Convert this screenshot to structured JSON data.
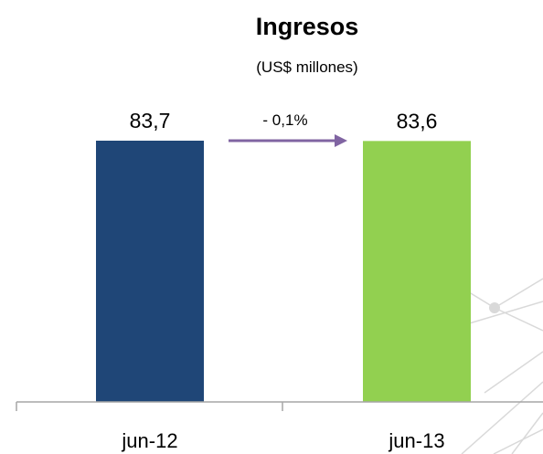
{
  "chart_data": {
    "type": "bar",
    "title": "Ingresos",
    "subtitle": "(US$ millones)",
    "categories": [
      "jun-12",
      "jun-13"
    ],
    "values": [
      83.7,
      83.6
    ],
    "value_labels": [
      "83,7",
      "83,6"
    ],
    "bar_colors": [
      "#1f4677",
      "#92d050"
    ],
    "change_label": "- 0,1%",
    "arrow_color": "#8064a2",
    "grid": false,
    "ylim": [
      0,
      83.7
    ]
  }
}
